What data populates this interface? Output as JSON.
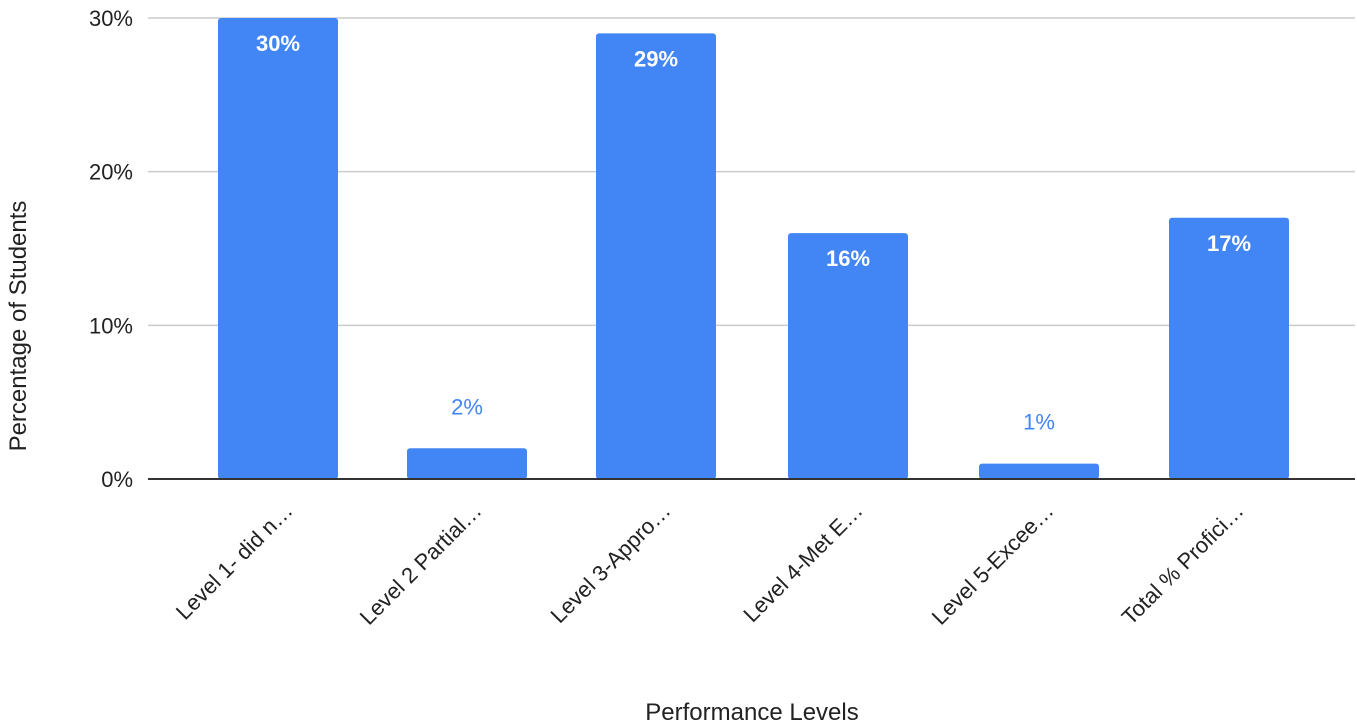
{
  "chart_data": {
    "type": "bar",
    "title": "",
    "xlabel": "Performance Levels",
    "ylabel": "Percentage of Students",
    "categories": [
      "Level 1- did n…",
      "Level 2 Partial…",
      "Level 3-Appro…",
      "Level 4-Met E…",
      "Level 5-Excee…",
      "Total % Profici…"
    ],
    "values": [
      30,
      2,
      29,
      16,
      1,
      17
    ],
    "value_labels": [
      "30%",
      "2%",
      "29%",
      "16%",
      "1%",
      "17%"
    ],
    "ylim": [
      0,
      30
    ],
    "yticks": [
      0,
      10,
      20,
      30
    ],
    "ytick_labels": [
      "0%",
      "10%",
      "20%",
      "30%"
    ],
    "grid": true,
    "legend": "none",
    "colors": {
      "bar": "#4285f4",
      "label_inside": "#ffffff",
      "label_outside": "#4285f4",
      "gridline": "#cccccc",
      "baseline": "#333333"
    }
  }
}
